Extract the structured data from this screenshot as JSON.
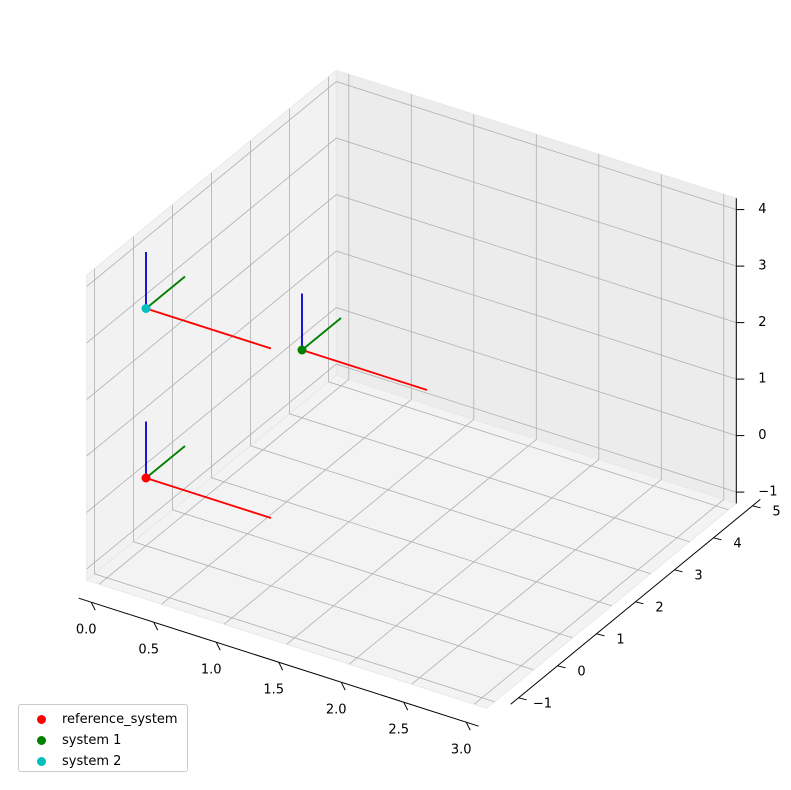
{
  "chart_data": {
    "type": "scatter",
    "projection": "3d",
    "title": "",
    "xlabel": "",
    "ylabel": "",
    "zlabel": "",
    "xlim": [
      -0.1,
      3.1
    ],
    "ylim": [
      -1.2,
      5.2
    ],
    "zlim": [
      -1.2,
      4.2
    ],
    "x_ticks": [
      "0.0",
      "0.5",
      "1.0",
      "1.5",
      "2.0",
      "2.5",
      "3.0"
    ],
    "y_ticks": [
      "−1",
      "0",
      "1",
      "2",
      "3",
      "4",
      "5"
    ],
    "z_ticks": [
      "−1",
      "0",
      "1",
      "2",
      "3",
      "4"
    ],
    "grid": true,
    "legend_position": "lower-left",
    "axis_colors": {
      "x": "#ff0000",
      "y": "#008000",
      "z": "#0000cc"
    },
    "series": [
      {
        "name": "reference_system",
        "color": "#ff0000",
        "origin": [
          0,
          0,
          0
        ],
        "axis_length": 1
      },
      {
        "name": "system 1",
        "color": "#008000",
        "origin": [
          0,
          4,
          0
        ],
        "axis_length": 1
      },
      {
        "name": "system 2",
        "color": "#00bfbf",
        "origin": [
          0,
          0,
          3
        ],
        "axis_length": 1
      }
    ]
  }
}
